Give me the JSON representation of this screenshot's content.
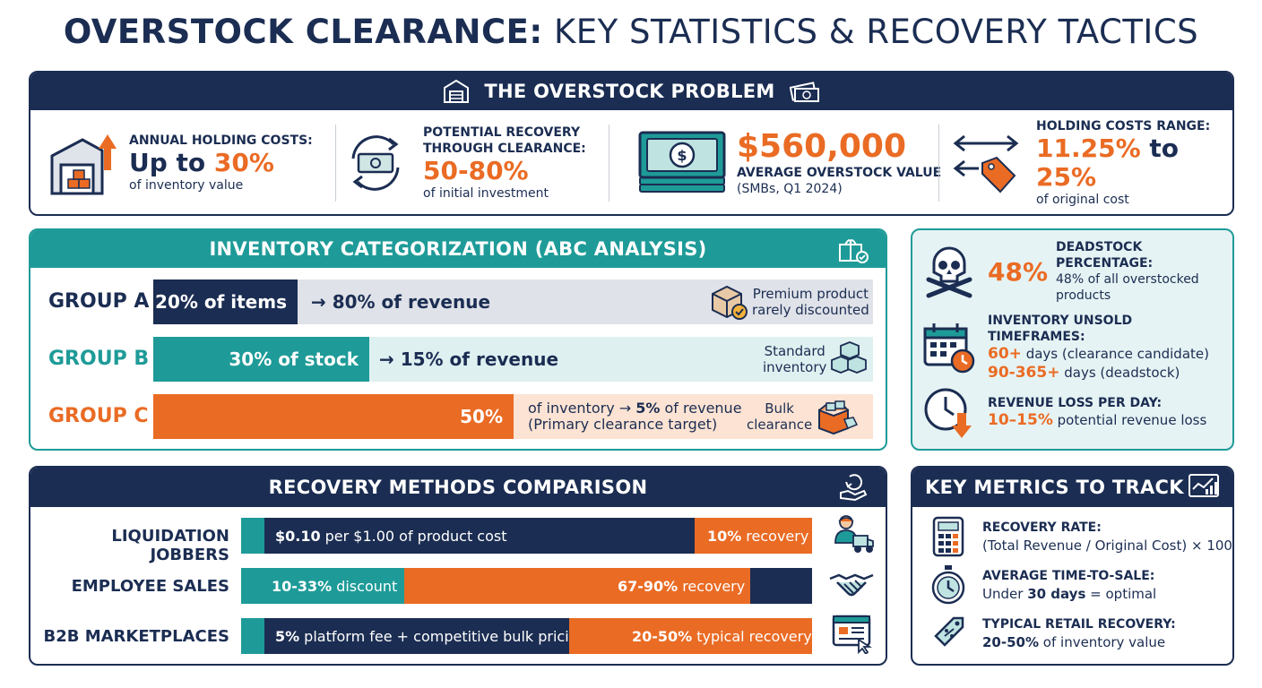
{
  "title": {
    "bold": "OVERSTOCK CLEARANCE:",
    "rest": "KEY STATISTICS & RECOVERY TACTICS"
  },
  "problem": {
    "header": "THE OVERSTOCK PROBLEM",
    "stats": [
      {
        "label": "ANNUAL HOLDING COSTS:",
        "big_prefix": "Up to",
        "big_value": "30%",
        "sub": "of inventory value",
        "icon": "warehouse-icon"
      },
      {
        "label_1": "POTENTIAL RECOVERY",
        "label_2": "THROUGH CLEARANCE:",
        "big_value": "50-80%",
        "sub": "of initial investment",
        "icon": "money-cycle-icon"
      },
      {
        "big_value": "$560,000",
        "label": "AVERAGE OVERSTOCK VALUE",
        "sub": "(SMBs, Q1 2024)",
        "icon": "cash-stack-icon"
      },
      {
        "label": "HOLDING COSTS RANGE:",
        "big_low": "11.25%",
        "big_mid": "to",
        "big_high": "25%",
        "sub": "of original cost",
        "icon": "price-tag-range-icon"
      }
    ]
  },
  "abc": {
    "header": "INVENTORY CATEGORIZATION (ABC ANALYSIS)",
    "groups": [
      {
        "label": "GROUP A",
        "fill_text": "20% of items",
        "after_text": "→ 80% of revenue",
        "note_1": "Premium product",
        "note_2": "rarely discounted",
        "share": 0.2,
        "icon": "premium-box-icon"
      },
      {
        "label": "GROUP B",
        "fill_text": "30% of stock",
        "after_text": "→ 15% of revenue",
        "note_1": "Standard",
        "note_2": "inventory",
        "share": 0.3,
        "icon": "boxes-stack-icon"
      },
      {
        "label": "GROUP C",
        "fill_text": "50%",
        "after_1a": "of inventory →",
        "after_1b": "5%",
        "after_1c": "of revenue",
        "after_2": "(Primary clearance target)",
        "note_1": "Bulk",
        "note_2": "clearance",
        "share": 0.5,
        "icon": "bulk-box-icon"
      }
    ],
    "colors": {
      "group_a": "#1b2d52",
      "group_b": "#1e9b98",
      "group_c": "#ea6b24"
    }
  },
  "side": {
    "deadstock": {
      "value": "48%",
      "label": "DEADSTOCK PERCENTAGE:",
      "text": "48% of all overstocked products"
    },
    "unsold": {
      "label": "INVENTORY UNSOLD TIMEFRAMES:",
      "line1_value": "60+",
      "line1_text": "days (clearance candidate)",
      "line2_value": "90-365+",
      "line2_text": "days (deadstock)"
    },
    "loss": {
      "label": "REVENUE LOSS PER DAY:",
      "value": "10–15%",
      "text": "potential revenue loss"
    }
  },
  "recovery": {
    "header": "RECOVERY METHODS COMPARISON",
    "methods": [
      {
        "label": "LIQUIDATION JOBBERS",
        "seg1_bold": "$0.10",
        "seg1_text": "per $1.00 of product cost",
        "seg2_bold": "10%",
        "seg2_text": "recovery",
        "icon": "delivery-truck-icon"
      },
      {
        "label": "EMPLOYEE SALES",
        "seg1_bold": "10-33%",
        "seg1_text": "discount",
        "seg2_bold": "67-90%",
        "seg2_text": "recovery",
        "icon": "handshake-icon"
      },
      {
        "label": "B2B MARKETPLACES",
        "seg1_bold": "5%",
        "seg1_text": "platform fee + competitive bulk pricing",
        "seg2_bold": "20-50%",
        "seg2_text": "typical recovery",
        "icon": "marketplace-screen-icon"
      }
    ]
  },
  "metrics": {
    "header": "KEY METRICS TO TRACK",
    "items": [
      {
        "label": "RECOVERY RATE:",
        "text": "(Total Revenue / Original Cost) × 100",
        "icon": "calculator-icon"
      },
      {
        "label": "AVERAGE TIME-TO-SALE:",
        "text_a": "Under",
        "text_b": "30 days",
        "text_c": "= optimal",
        "icon": "stopwatch-icon"
      },
      {
        "label": "TYPICAL RETAIL RECOVERY:",
        "text_a": "20-50%",
        "text_b": "of inventory value",
        "icon": "discount-tag-icon"
      }
    ]
  }
}
